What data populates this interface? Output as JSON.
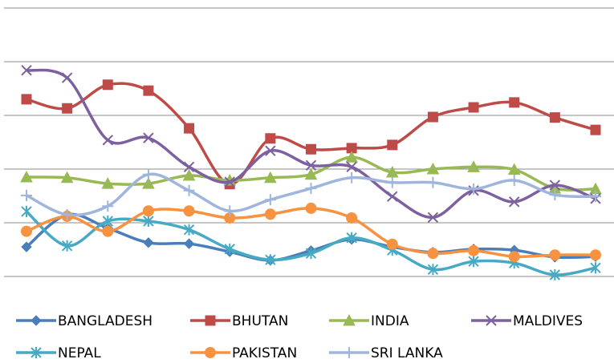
{
  "chart_data": {
    "type": "line",
    "categories": [
      null,
      null,
      null,
      null,
      null,
      null,
      null,
      null,
      null,
      null,
      null,
      null,
      null,
      null,
      null
    ],
    "ylim": [
      0,
      5
    ],
    "yticks": [
      0,
      1,
      2,
      3,
      4,
      5
    ],
    "grid": true,
    "smooth": true,
    "legend": "bottom",
    "series": [
      {
        "name": "BANGLADESH",
        "color": "#4a7ebb",
        "marker": "diamond",
        "values": [
          0.55,
          1.15,
          0.9,
          0.63,
          0.61,
          0.46,
          0.3,
          0.48,
          0.69,
          0.55,
          0.45,
          0.51,
          0.49,
          0.36,
          0.37
        ]
      },
      {
        "name": "BHUTAN",
        "color": "#be4b48",
        "marker": "square",
        "values": [
          3.3,
          3.13,
          3.57,
          3.46,
          2.76,
          1.72,
          2.57,
          2.37,
          2.39,
          2.45,
          2.97,
          3.15,
          3.24,
          2.96,
          2.73
        ]
      },
      {
        "name": "INDIA",
        "color": "#98b954",
        "marker": "triangle",
        "values": [
          1.85,
          1.84,
          1.73,
          1.73,
          1.88,
          1.79,
          1.84,
          1.9,
          2.22,
          1.94,
          2.0,
          2.04,
          1.99,
          1.64,
          1.63
        ]
      },
      {
        "name": "MALDIVES",
        "color": "#7d60a0",
        "marker": "x",
        "values": [
          3.84,
          3.7,
          2.54,
          2.58,
          2.04,
          1.76,
          2.34,
          2.07,
          2.04,
          1.49,
          1.1,
          1.6,
          1.39,
          1.7,
          1.45
        ]
      },
      {
        "name": "NEPAL",
        "color": "#46aac5",
        "marker": "star",
        "values": [
          1.21,
          0.57,
          1.03,
          1.03,
          0.87,
          0.51,
          0.31,
          0.43,
          0.72,
          0.49,
          0.13,
          0.28,
          0.25,
          0.03,
          0.16
        ]
      },
      {
        "name": "PAKISTAN",
        "color": "#f69240",
        "marker": "circle",
        "values": [
          0.84,
          1.12,
          0.84,
          1.22,
          1.22,
          1.09,
          1.16,
          1.27,
          1.09,
          0.6,
          0.43,
          0.48,
          0.37,
          0.4,
          0.4
        ]
      },
      {
        "name": "SRI LANKA",
        "color": "#a0b5dc",
        "marker": "plus",
        "values": [
          1.51,
          1.15,
          1.31,
          1.9,
          1.6,
          1.22,
          1.43,
          1.64,
          1.84,
          1.75,
          1.75,
          1.63,
          1.79,
          1.52,
          1.49
        ]
      }
    ]
  }
}
